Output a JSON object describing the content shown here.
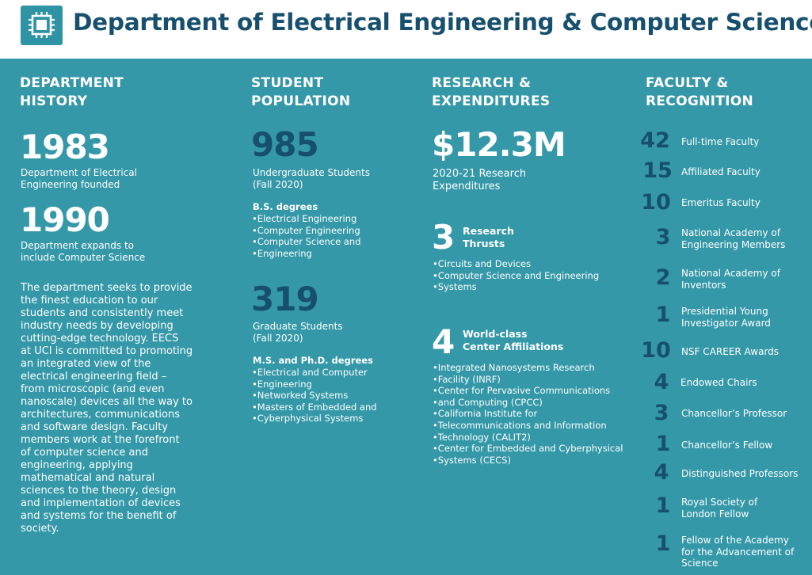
{
  "header": {
    "title": "Department of Electrical Engineering & Computer Science",
    "logo_icon": "chip-icon"
  },
  "history": {
    "heading_line1": "DEPARTMENT",
    "heading_line2": "HISTORY",
    "year1": "1983",
    "year1_desc_line1": "Department of Electrical",
    "year1_desc_line2": "Engineering founded",
    "year2": "1990",
    "year2_desc_line1": "Department expands to",
    "year2_desc_line2": "include Computer Science",
    "paragraph_lines": [
      "The department seeks to provide",
      "the finest education to our",
      "students and consistently meet",
      "industry needs by developing",
      "cutting-edge technology. EECS",
      "at UCI is committed to promoting",
      "an integrated view of the",
      "electrical engineering field –",
      "from microscopic (and even",
      "nanoscale) devices all the way to",
      "architectures, communications",
      "and software design. Faculty",
      "members work at the forefront",
      "of computer science and",
      "engineering, applying",
      "mathematical and natural",
      "sciences to the theory, design",
      "and implementation of devices",
      "and systems for the benefit of",
      "society."
    ]
  },
  "population": {
    "heading_line1": "STUDENT",
    "heading_line2": "POPULATION",
    "undergrad_count": "985",
    "undergrad_label_line1": "Undergraduate Students",
    "undergrad_label_line2": "(Fall 2020)",
    "bs_heading": "B.S. degrees",
    "bs_items": [
      "Electrical Engineering",
      "Computer Engineering",
      "Computer Science and",
      "Engineering"
    ],
    "grad_count": "319",
    "grad_label_line1": "Graduate Students",
    "grad_label_line2": "(Fall 2020)",
    "ms_heading": "M.S. and Ph.D. degrees",
    "ms_items": [
      "Electrical and Computer",
      "Engineering",
      "Networked Systems",
      "Masters of Embedded and",
      "Cyberphysical Systems"
    ]
  },
  "research": {
    "heading_line1": "RESEARCH &",
    "heading_line2": "EXPENDITURES",
    "amount": "$12.3M",
    "amount_label_line1": "2020-21 Research",
    "amount_label_line2": "Expenditures",
    "thrusts_count": "3",
    "thrusts_label_line1": "Research",
    "thrusts_label_line2": "Thrusts",
    "thrusts_items": [
      "Circuits and Devices",
      "Computer Science and Engineering",
      "Systems"
    ],
    "centers_count": "4",
    "centers_label_line1": "World-class",
    "centers_label_line2": "Center Affiliations",
    "centers_items": [
      "Integrated Nanosystems Research",
      "Facility (INRF)",
      "Center for Pervasive Communications",
      "and Computing (CPCC)",
      "California Institute for",
      "Telecommunications and Information",
      "Technology (CALIT2)",
      "Center for Embedded and Cyberphysical",
      "Systems (CECS)"
    ]
  },
  "faculty": {
    "heading_line1": "FACULTY &",
    "heading_line2": "RECOGNITION",
    "items": [
      {
        "num": "42",
        "line1": "Full-time Faculty",
        "line2": ""
      },
      {
        "num": "15",
        "line1": "Affiliated Faculty",
        "line2": ""
      },
      {
        "num": "10",
        "line1": "Emeritus Faculty",
        "line2": ""
      },
      {
        "num": "3",
        "line1": "National Academy of",
        "line2": "Engineering Members"
      },
      {
        "num": "2",
        "line1": "National Academy of",
        "line2": "Inventors"
      },
      {
        "num": "1",
        "line1": "Presidential Young",
        "line2": "Investigator Award"
      },
      {
        "num": "10",
        "line1": "NSF CAREER Awards",
        "line2": ""
      },
      {
        "num": "4",
        "line1": "Endowed Chairs",
        "line2": ""
      },
      {
        "num": "3",
        "line1": "Chancellor’s Professor",
        "line2": ""
      },
      {
        "num": "1",
        "line1": "Chancellor’s Fellow",
        "line2": ""
      },
      {
        "num": "4",
        "line1": "Distinguished Professors",
        "line2": ""
      },
      {
        "num": "1",
        "line1": "Royal Society of",
        "line2": "London Fellow"
      },
      {
        "num": "1",
        "line1": "Fellow of the Academy",
        "line2": "for the Advancement of",
        "line3": "Science"
      }
    ]
  },
  "colors": {
    "background": "#3498a8",
    "dark_text": "#17506e",
    "header_bg": "#ffffff"
  }
}
